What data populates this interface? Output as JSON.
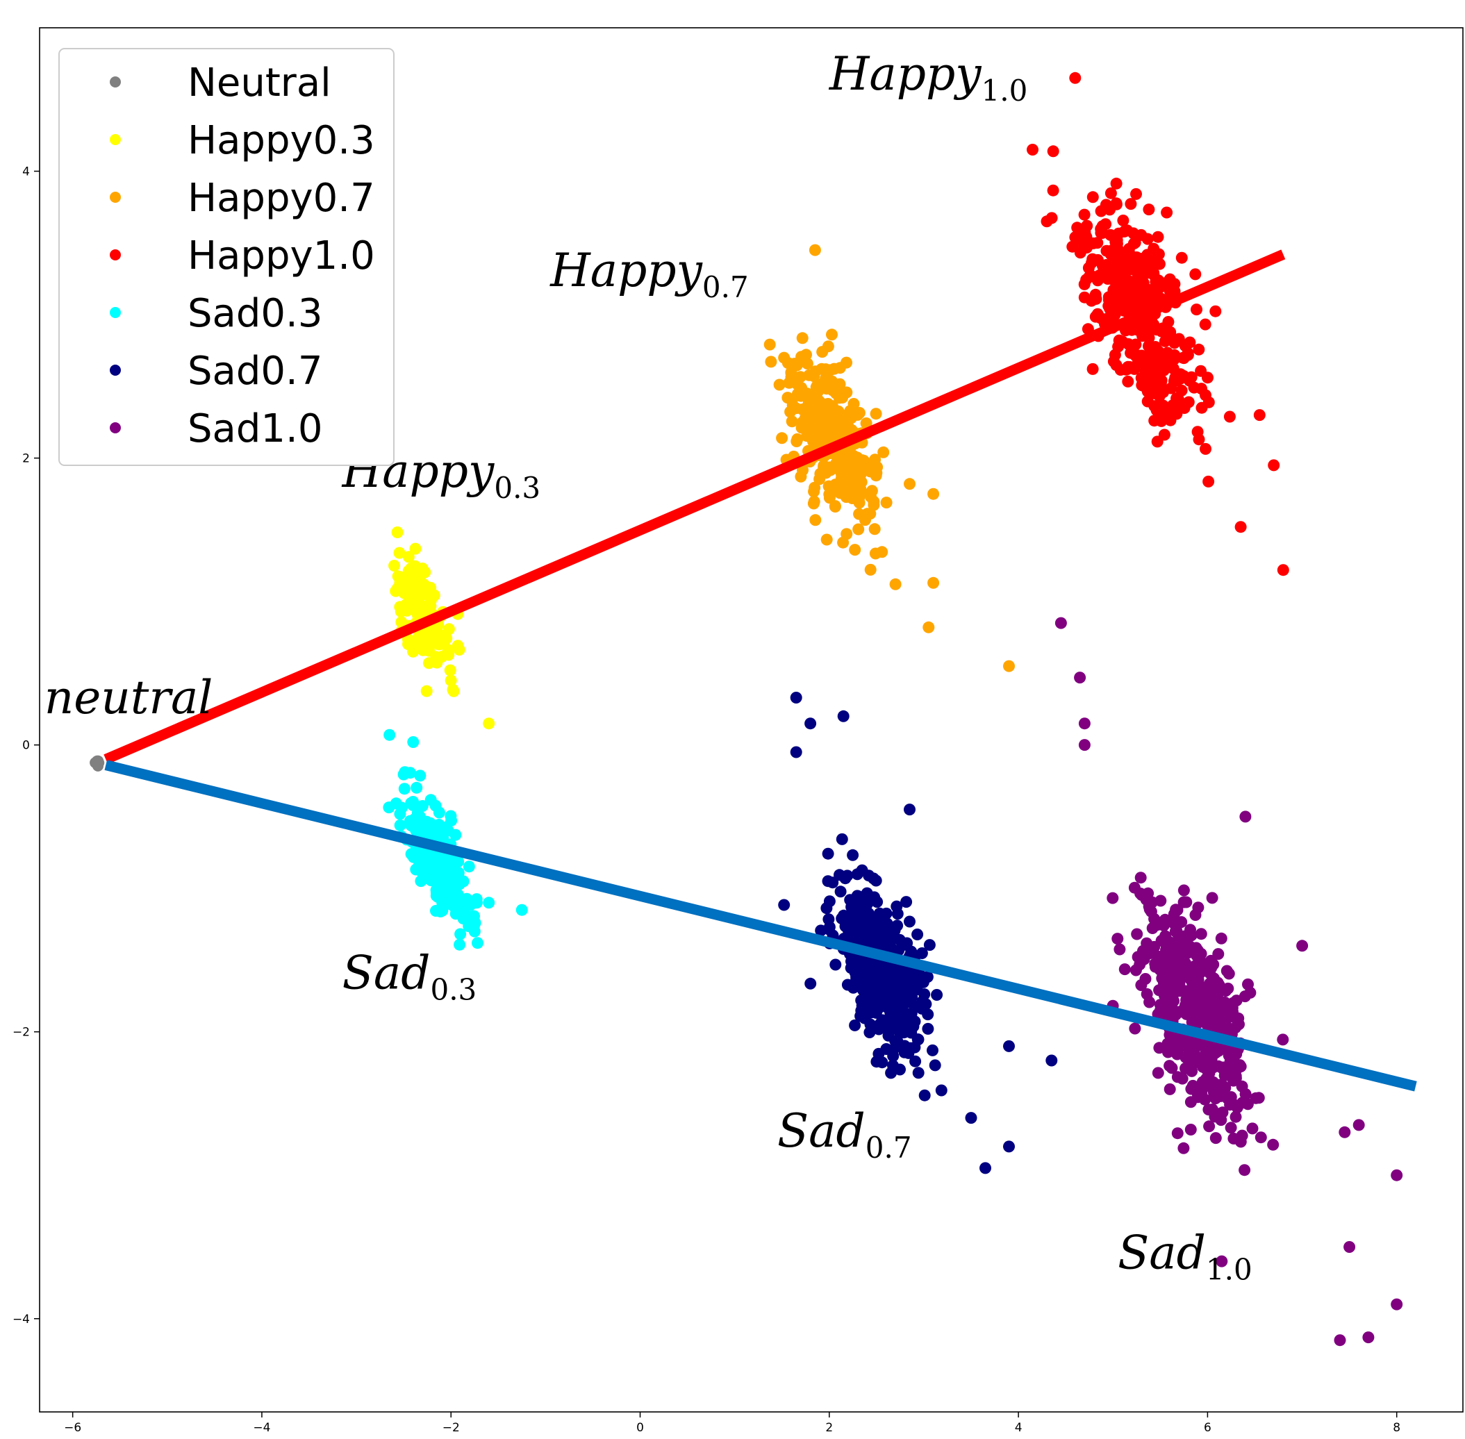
{
  "chart_data": {
    "type": "scatter",
    "title": "",
    "xlabel": "",
    "ylabel": "",
    "xlim": [
      -6.35,
      8.7
    ],
    "ylim": [
      -4.65,
      5.0
    ],
    "xticks": [
      -6,
      -4,
      -2,
      0,
      2,
      4,
      6,
      8
    ],
    "yticks": [
      -4,
      -2,
      0,
      2,
      4
    ],
    "xtick_labels": [
      "−6",
      "−4",
      "−2",
      "0",
      "2",
      "4",
      "6",
      "8"
    ],
    "ytick_labels": [
      "−4",
      "−2",
      "0",
      "2",
      "4"
    ],
    "grid": false,
    "legend": {
      "placement": "top-left"
    },
    "series": [
      {
        "name": "Neutral",
        "color": "#808080",
        "center": [
          -5.7,
          -0.13
        ],
        "spread": [
          0.02,
          0.02
        ],
        "count": 5,
        "tilt": 0,
        "outliers": []
      },
      {
        "name": "Happy0.3",
        "color": "#ffff00",
        "center": [
          -2.3,
          0.9
        ],
        "spread": [
          0.1,
          0.15
        ],
        "count": 150,
        "tilt": -1.6,
        "outliers": [
          [
            -1.6,
            0.15
          ],
          [
            -2.6,
            1.25
          ],
          [
            -2.0,
            0.45
          ]
        ]
      },
      {
        "name": "Happy0.7",
        "color": "#ffa500",
        "center": [
          2.05,
          2.15
        ],
        "spread": [
          0.18,
          0.22
        ],
        "count": 330,
        "tilt": -1.5,
        "outliers": [
          [
            1.85,
            3.45
          ],
          [
            3.05,
            0.82
          ],
          [
            3.9,
            0.55
          ],
          [
            3.1,
            1.13
          ],
          [
            2.7,
            1.12
          ],
          [
            3.1,
            1.75
          ],
          [
            2.85,
            1.82
          ]
        ]
      },
      {
        "name": "Happy1.0",
        "color": "#ff0000",
        "center": [
          5.3,
          3.0
        ],
        "spread": [
          0.22,
          0.28
        ],
        "count": 360,
        "tilt": -1.3,
        "outliers": [
          [
            4.6,
            4.65
          ],
          [
            4.15,
            4.15
          ],
          [
            6.8,
            1.22
          ],
          [
            6.35,
            1.52
          ],
          [
            6.7,
            1.95
          ],
          [
            6.55,
            2.3
          ],
          [
            4.3,
            3.65
          ]
        ]
      },
      {
        "name": "Sad0.3",
        "color": "#00ffff",
        "center": [
          -2.15,
          -0.8
        ],
        "spread": [
          0.1,
          0.16
        ],
        "count": 260,
        "tilt": -1.5,
        "outliers": [
          [
            -2.65,
            0.07
          ],
          [
            -2.4,
            0.02
          ],
          [
            -1.25,
            -1.15
          ],
          [
            -1.75,
            -1.3
          ],
          [
            -1.6,
            -1.1
          ]
        ]
      },
      {
        "name": "Sad0.7",
        "color": "#000080",
        "center": [
          2.55,
          -1.55
        ],
        "spread": [
          0.17,
          0.2
        ],
        "count": 480,
        "tilt": -1.7,
        "outliers": [
          [
            1.65,
            0.33
          ],
          [
            2.15,
            0.2
          ],
          [
            3.65,
            -2.95
          ],
          [
            3.9,
            -2.8
          ],
          [
            3.9,
            -2.1
          ],
          [
            4.35,
            -2.2
          ],
          [
            3.5,
            -2.6
          ],
          [
            1.65,
            -0.05
          ],
          [
            2.85,
            -0.45
          ],
          [
            1.8,
            0.15
          ]
        ]
      },
      {
        "name": "Sad1.0",
        "color": "#800080",
        "center": [
          5.85,
          -1.85
        ],
        "spread": [
          0.22,
          0.3
        ],
        "count": 460,
        "tilt": -1.6,
        "outliers": [
          [
            4.45,
            0.85
          ],
          [
            4.65,
            0.47
          ],
          [
            7.4,
            -4.15
          ],
          [
            7.7,
            -4.13
          ],
          [
            8.0,
            -3.9
          ],
          [
            8.0,
            -3.0
          ],
          [
            7.5,
            -3.5
          ],
          [
            7.6,
            -2.65
          ],
          [
            7.45,
            -2.7
          ],
          [
            7.0,
            -1.4
          ],
          [
            6.4,
            -0.5
          ],
          [
            4.7,
            0.15
          ],
          [
            4.7,
            0.0
          ],
          [
            6.15,
            -3.6
          ]
        ]
      }
    ],
    "trend_lines": [
      {
        "name": "happy-direction",
        "color": "#ff0000",
        "from": [
          -5.65,
          -0.1
        ],
        "to": [
          6.8,
          3.42
        ]
      },
      {
        "name": "sad-direction",
        "color": "#0070c0",
        "from": [
          -5.65,
          -0.14
        ],
        "to": [
          8.2,
          -2.38
        ]
      }
    ],
    "annotations": [
      {
        "name": "neutral",
        "main": "neutral",
        "sub": "",
        "anchor": [
          -6.3,
          0.22
        ]
      },
      {
        "name": "happy-0-3",
        "main": "Happy",
        "sub": "0.3",
        "anchor": [
          -3.15,
          1.8
        ]
      },
      {
        "name": "happy-0-7",
        "main": "Happy",
        "sub": "0.7",
        "anchor": [
          -0.95,
          3.2
        ]
      },
      {
        "name": "happy-1-0",
        "main": "Happy",
        "sub": "1.0",
        "anchor": [
          2.0,
          4.57
        ]
      },
      {
        "name": "sad-0-3",
        "main": "Sad",
        "sub": "0.3",
        "anchor": [
          -3.15,
          -1.7
        ]
      },
      {
        "name": "sad-0-7",
        "main": "Sad",
        "sub": "0.7",
        "anchor": [
          1.45,
          -2.8
        ]
      },
      {
        "name": "sad-1-0",
        "main": "Sad",
        "sub": "1.0",
        "anchor": [
          5.05,
          -3.65
        ]
      }
    ]
  }
}
